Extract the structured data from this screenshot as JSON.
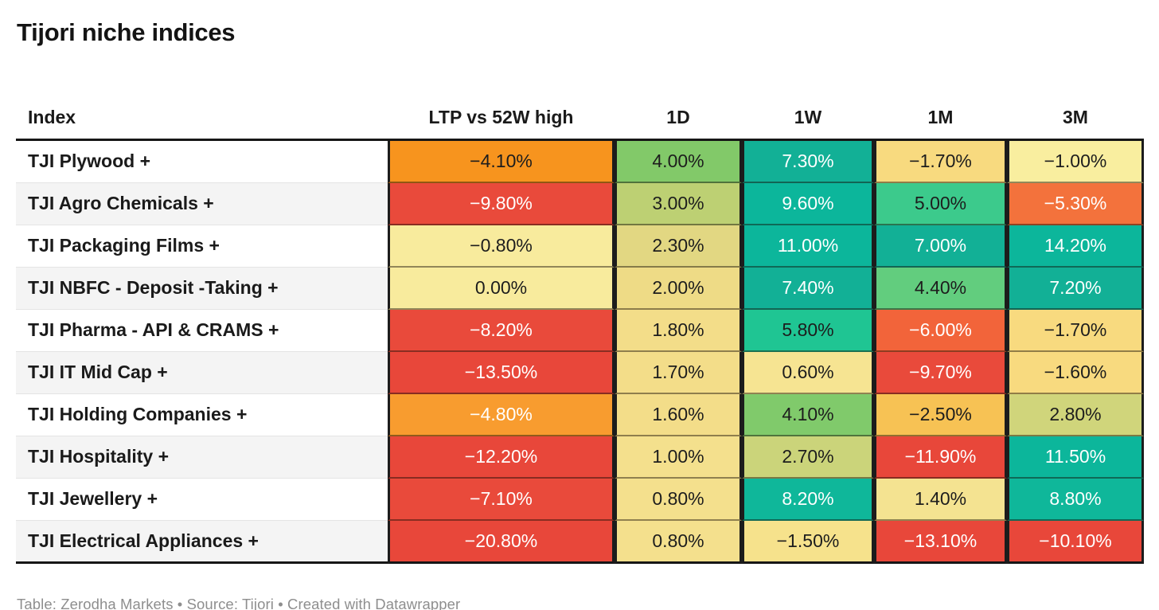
{
  "title": "Tijori niche indices",
  "columns": [
    {
      "key": "index",
      "label": "Index"
    },
    {
      "key": "ltp_52w",
      "label": "LTP vs 52W high"
    },
    {
      "key": "d1",
      "label": "1D"
    },
    {
      "key": "w1",
      "label": "1W"
    },
    {
      "key": "m1",
      "label": "1M"
    },
    {
      "key": "m3",
      "label": "3M"
    }
  ],
  "rows": [
    {
      "index": "TJI Plywood +",
      "cells": [
        {
          "v": "−4.10%",
          "bg": "#f7941e",
          "fg": "#1d1d1d"
        },
        {
          "v": "4.00%",
          "bg": "#82c969",
          "fg": "#1d1d1d"
        },
        {
          "v": "7.30%",
          "bg": "#12b096",
          "fg": "#ffffff"
        },
        {
          "v": "−1.70%",
          "bg": "#f8da7f",
          "fg": "#1d1d1d"
        },
        {
          "v": "−1.00%",
          "bg": "#f9ee9f",
          "fg": "#1d1d1d"
        }
      ]
    },
    {
      "index": "TJI Agro Chemicals +",
      "cells": [
        {
          "v": "−9.80%",
          "bg": "#e94a3b",
          "fg": "#ffffff"
        },
        {
          "v": "3.00%",
          "bg": "#bdd073",
          "fg": "#1d1d1d"
        },
        {
          "v": "9.60%",
          "bg": "#0cb69b",
          "fg": "#ffffff"
        },
        {
          "v": "5.00%",
          "bg": "#3cca8c",
          "fg": "#1d1d1d"
        },
        {
          "v": "−5.30%",
          "bg": "#f3723c",
          "fg": "#ffffff"
        }
      ]
    },
    {
      "index": "TJI Packaging Films +",
      "cells": [
        {
          "v": "−0.80%",
          "bg": "#f8eb9d",
          "fg": "#1d1d1d"
        },
        {
          "v": "2.30%",
          "bg": "#e2d782",
          "fg": "#1d1d1d"
        },
        {
          "v": "11.00%",
          "bg": "#0cb69b",
          "fg": "#ffffff"
        },
        {
          "v": "7.00%",
          "bg": "#12b096",
          "fg": "#ffffff"
        },
        {
          "v": "14.20%",
          "bg": "#0cb69b",
          "fg": "#ffffff"
        }
      ]
    },
    {
      "index": "TJI NBFC - Deposit -Taking +",
      "cells": [
        {
          "v": "0.00%",
          "bg": "#f8eb9d",
          "fg": "#1d1d1d"
        },
        {
          "v": "2.00%",
          "bg": "#eedb86",
          "fg": "#1d1d1d"
        },
        {
          "v": "7.40%",
          "bg": "#12b096",
          "fg": "#ffffff"
        },
        {
          "v": "4.40%",
          "bg": "#62cd7e",
          "fg": "#1d1d1d"
        },
        {
          "v": "7.20%",
          "bg": "#12b096",
          "fg": "#ffffff"
        }
      ]
    },
    {
      "index": "TJI Pharma - API & CRAMS +",
      "cells": [
        {
          "v": "−8.20%",
          "bg": "#e94a3b",
          "fg": "#ffffff"
        },
        {
          "v": "1.80%",
          "bg": "#f3dd89",
          "fg": "#1d1d1d"
        },
        {
          "v": "5.80%",
          "bg": "#1fc593",
          "fg": "#1d1d1d"
        },
        {
          "v": "−6.00%",
          "bg": "#f2643a",
          "fg": "#ffffff"
        },
        {
          "v": "−1.70%",
          "bg": "#f8da7f",
          "fg": "#1d1d1d"
        }
      ]
    },
    {
      "index": "TJI IT Mid Cap +",
      "cells": [
        {
          "v": "−13.50%",
          "bg": "#e8473a",
          "fg": "#ffffff"
        },
        {
          "v": "1.70%",
          "bg": "#f3dd89",
          "fg": "#1d1d1d"
        },
        {
          "v": "0.60%",
          "bg": "#f6e492",
          "fg": "#1d1d1d"
        },
        {
          "v": "−9.70%",
          "bg": "#e94a3b",
          "fg": "#ffffff"
        },
        {
          "v": "−1.60%",
          "bg": "#f8da7f",
          "fg": "#1d1d1d"
        }
      ]
    },
    {
      "index": "TJI Holding Companies +",
      "cells": [
        {
          "v": "−4.80%",
          "bg": "#f89c2f",
          "fg": "#ffffff"
        },
        {
          "v": "1.60%",
          "bg": "#f3dd89",
          "fg": "#1d1d1d"
        },
        {
          "v": "4.10%",
          "bg": "#80ca6b",
          "fg": "#1d1d1d"
        },
        {
          "v": "−2.50%",
          "bg": "#f7c254",
          "fg": "#1d1d1d"
        },
        {
          "v": "2.80%",
          "bg": "#d0d57b",
          "fg": "#1d1d1d"
        }
      ]
    },
    {
      "index": "TJI Hospitality +",
      "cells": [
        {
          "v": "−12.20%",
          "bg": "#e8473a",
          "fg": "#ffffff"
        },
        {
          "v": "1.00%",
          "bg": "#f4e08d",
          "fg": "#1d1d1d"
        },
        {
          "v": "2.70%",
          "bg": "#cbd47a",
          "fg": "#1d1d1d"
        },
        {
          "v": "−11.90%",
          "bg": "#e8473a",
          "fg": "#ffffff"
        },
        {
          "v": "11.50%",
          "bg": "#0cb69b",
          "fg": "#ffffff"
        }
      ]
    },
    {
      "index": "TJI Jewellery +",
      "cells": [
        {
          "v": "−7.10%",
          "bg": "#e94a3b",
          "fg": "#ffffff"
        },
        {
          "v": "0.80%",
          "bg": "#f4e08d",
          "fg": "#1d1d1d"
        },
        {
          "v": "8.20%",
          "bg": "#0fb79a",
          "fg": "#ffffff"
        },
        {
          "v": "1.40%",
          "bg": "#f4e391",
          "fg": "#1d1d1d"
        },
        {
          "v": "8.80%",
          "bg": "#0fb79a",
          "fg": "#ffffff"
        }
      ]
    },
    {
      "index": "TJI Electrical Appliances +",
      "cells": [
        {
          "v": "−20.80%",
          "bg": "#e8473a",
          "fg": "#ffffff"
        },
        {
          "v": "0.80%",
          "bg": "#f4e08d",
          "fg": "#1d1d1d"
        },
        {
          "v": "−1.50%",
          "bg": "#f6e28c",
          "fg": "#1d1d1d"
        },
        {
          "v": "−13.10%",
          "bg": "#e8473a",
          "fg": "#ffffff"
        },
        {
          "v": "−10.10%",
          "bg": "#e8473a",
          "fg": "#ffffff"
        }
      ]
    }
  ],
  "footer": "Table: Zerodha Markets • Source: Tijori • Created with Datawrapper",
  "style_colors": {
    "heat_negative_strong": "#e8473a",
    "heat_negative_mid": "#f3723c",
    "heat_negative_orange": "#f7941e",
    "heat_neutral_yellow": "#f8eb9d",
    "heat_positive_mid": "#82c969",
    "heat_positive_strong": "#0cb69b",
    "border_dark": "#161616",
    "row_alt_bg": "#f4f4f4",
    "footer_text": "#8e8e8e"
  },
  "chart_data": {
    "type": "table",
    "title": "Tijori niche indices",
    "columns": [
      "Index",
      "LTP vs 52W high",
      "1D",
      "1W",
      "1M",
      "3M"
    ],
    "units": "%",
    "rows": [
      [
        "TJI Plywood +",
        -4.1,
        4.0,
        7.3,
        -1.7,
        -1.0
      ],
      [
        "TJI Agro Chemicals +",
        -9.8,
        3.0,
        9.6,
        5.0,
        -5.3
      ],
      [
        "TJI Packaging Films +",
        -0.8,
        2.3,
        11.0,
        7.0,
        14.2
      ],
      [
        "TJI NBFC - Deposit -Taking +",
        0.0,
        2.0,
        7.4,
        4.4,
        7.2
      ],
      [
        "TJI Pharma - API & CRAMS +",
        -8.2,
        1.8,
        5.8,
        -6.0,
        -1.7
      ],
      [
        "TJI IT Mid Cap +",
        -13.5,
        1.7,
        0.6,
        -9.7,
        -1.6
      ],
      [
        "TJI Holding Companies +",
        -4.8,
        1.6,
        4.1,
        -2.5,
        2.8
      ],
      [
        "TJI Hospitality +",
        -12.2,
        1.0,
        2.7,
        -11.9,
        11.5
      ],
      [
        "TJI Jewellery +",
        -7.1,
        0.8,
        8.2,
        1.4,
        8.8
      ],
      [
        "TJI Electrical Appliances +",
        -20.8,
        0.8,
        -1.5,
        -13.1,
        -10.1
      ]
    ],
    "legend": "cell background heatmap: red (strong negative) → orange → yellow (near zero) → green → teal (strong positive)",
    "footer": "Table: Zerodha Markets • Source: Tijori • Created with Datawrapper"
  }
}
